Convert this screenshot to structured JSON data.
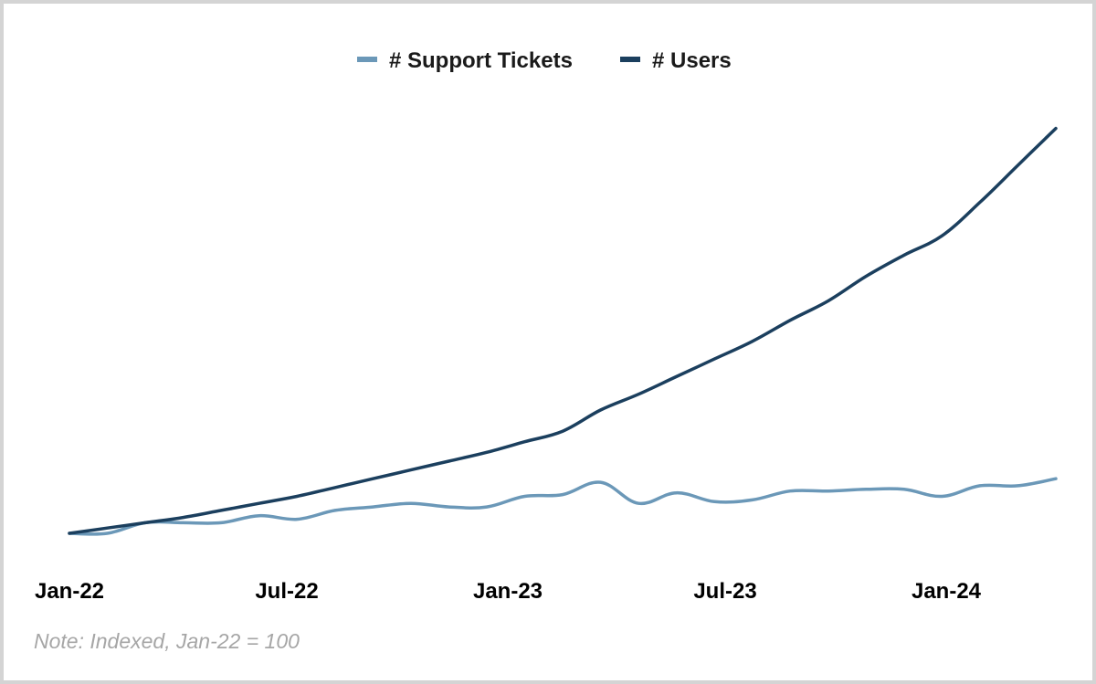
{
  "chart_data": {
    "type": "line",
    "title": "",
    "xlabel": "",
    "ylabel": "",
    "x": [
      "Jan-22",
      "Feb-22",
      "Mar-22",
      "Apr-22",
      "May-22",
      "Jun-22",
      "Jul-22",
      "Aug-22",
      "Sep-22",
      "Oct-22",
      "Nov-22",
      "Dec-22",
      "Jan-23",
      "Feb-23",
      "Mar-23",
      "Apr-23",
      "May-23",
      "Jun-23",
      "Jul-23",
      "Aug-23",
      "Sep-23",
      "Oct-23",
      "Nov-23",
      "Dec-23",
      "Jan-24",
      "Feb-24",
      "Mar-24"
    ],
    "x_ticks": [
      "Jan-22",
      "Jul-22",
      "Jan-23",
      "Jul-23",
      "Jan-24"
    ],
    "ylim": [
      100,
      350
    ],
    "grid": false,
    "legend_position": "top-center",
    "series": [
      {
        "name": "# Support Tickets",
        "color": "#6b98b8",
        "values": [
          100,
          100,
          106,
          106,
          106,
          110,
          108,
          113,
          115,
          117,
          115,
          115,
          121,
          122,
          129,
          117,
          123,
          118,
          119,
          124,
          124,
          125,
          125,
          121,
          127,
          127,
          131
        ]
      },
      {
        "name": "# Users",
        "color": "#1b3f5e",
        "values": [
          100,
          103,
          106,
          109,
          113,
          117,
          121,
          126,
          131,
          136,
          141,
          146,
          152,
          158,
          170,
          179,
          189,
          199,
          209,
          221,
          232,
          246,
          258,
          269,
          288,
          309,
          330
        ]
      }
    ],
    "annotations": [
      "Note: Indexed, Jan-22 = 100"
    ]
  },
  "note": "Note: Indexed, Jan-22 = 100"
}
